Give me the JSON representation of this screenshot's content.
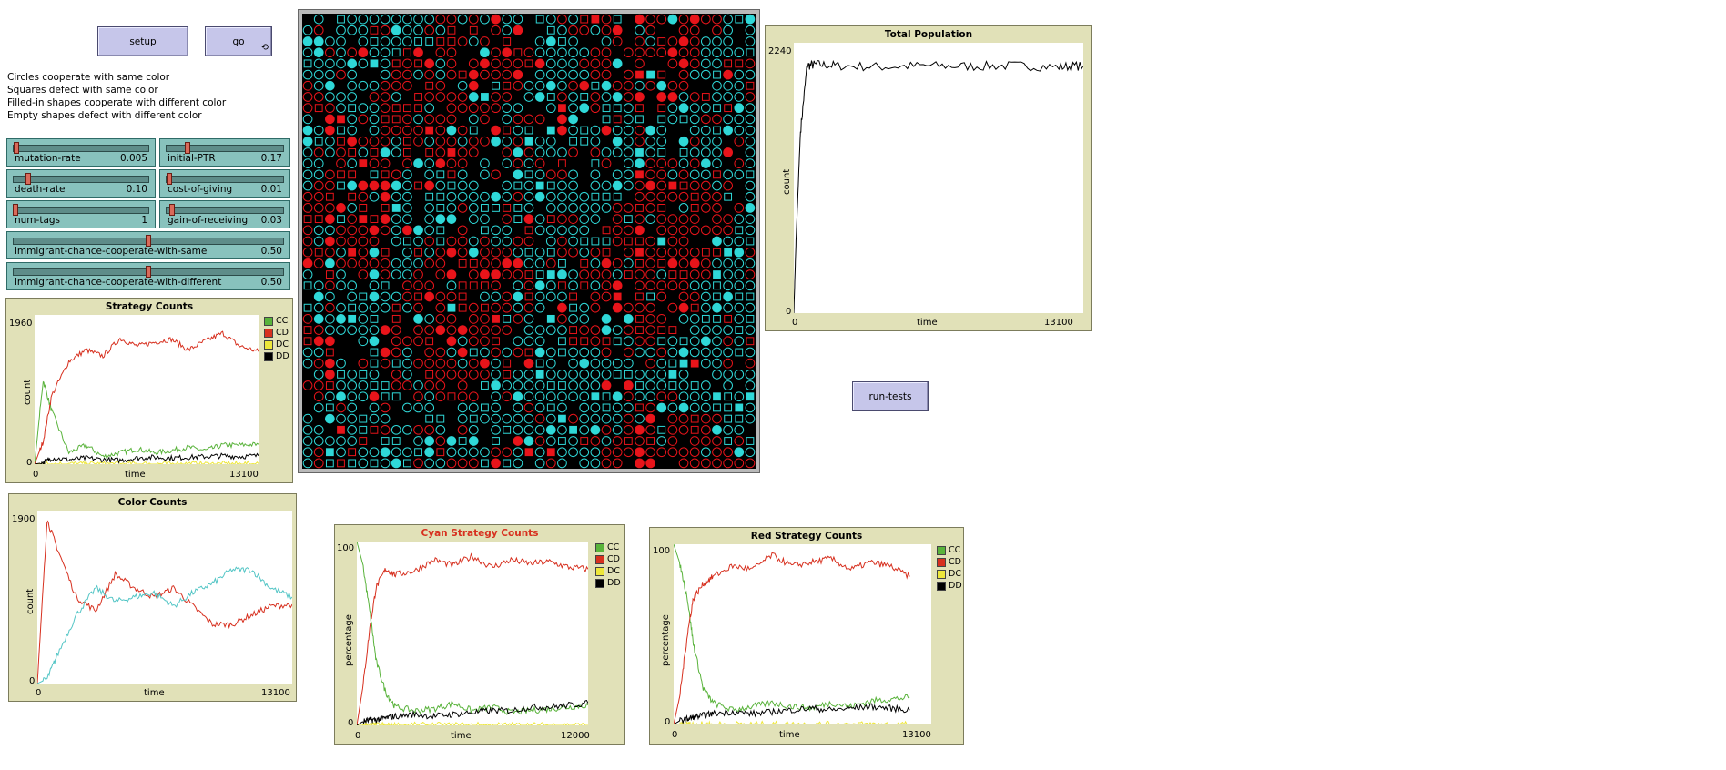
{
  "buttons": {
    "setup": "setup",
    "go": "go",
    "go_forever_icon": "⟲",
    "run_tests": "run-tests"
  },
  "notes": [
    "Circles cooperate with same color",
    "Squares defect with same color",
    "Filled-in shapes cooperate with different color",
    "Empty shapes defect with different color"
  ],
  "sliders": [
    {
      "label": "mutation-rate",
      "value": "0.005",
      "fraction": 0.01
    },
    {
      "label": "initial-PTR",
      "value": "0.17",
      "fraction": 0.17
    },
    {
      "label": "death-rate",
      "value": "0.10",
      "fraction": 0.1
    },
    {
      "label": "cost-of-giving",
      "value": "0.01",
      "fraction": 0.01
    },
    {
      "label": "num-tags",
      "value": "1",
      "fraction": 0.0
    },
    {
      "label": "gain-of-receiving",
      "value": "0.03",
      "fraction": 0.03
    },
    {
      "label": "immigrant-chance-cooperate-with-same",
      "value": "0.50",
      "fraction": 0.5
    },
    {
      "label": "immigrant-chance-cooperate-with-different",
      "value": "0.50",
      "fraction": 0.5
    }
  ],
  "colors": {
    "cc": "#59b33b",
    "cd": "#d7301f",
    "dc": "#ede73a",
    "dd": "#000000",
    "cyan": "#52c5c5",
    "red": "#d7301f",
    "agent_cyan": "#2fd8d8",
    "agent_red": "#e8141a",
    "plot_bg": "#e1e1b8",
    "button": "#c6c6ea",
    "slider": "#88c2bd"
  },
  "plots": {
    "strategy": {
      "title": "Strategy Counts",
      "ymax_label": "1960",
      "ymin_label": "0",
      "xmin_label": "0",
      "xmax_label": "13100",
      "xlabel": "time",
      "ylabel": "count",
      "legend": [
        "CC",
        "CD",
        "DC",
        "DD"
      ]
    },
    "color": {
      "title": "Color Counts",
      "ymax_label": "1900",
      "ymin_label": "0",
      "xmin_label": "0",
      "xmax_label": "13100",
      "xlabel": "time",
      "ylabel": "count"
    },
    "total": {
      "title": "Total Population",
      "ymax_label": "2240",
      "ymin_label": "0",
      "xmin_label": "0",
      "xmax_label": "13100",
      "xlabel": "time",
      "ylabel": "count"
    },
    "cyan": {
      "title": "Cyan Strategy Counts",
      "title_color": "#d7301f",
      "ymax_label": "100",
      "ymin_label": "0",
      "xmin_label": "0",
      "xmax_label": "12000",
      "xlabel": "time",
      "ylabel": "percentage",
      "legend": [
        "CC",
        "CD",
        "DC",
        "DD"
      ]
    },
    "red": {
      "title": "Red Strategy Counts",
      "ymax_label": "100",
      "ymin_label": "0",
      "xmin_label": "0",
      "xmax_label": "13100",
      "xlabel": "time",
      "ylabel": "percentage",
      "legend": [
        "CC",
        "CD",
        "DC",
        "DD"
      ]
    }
  },
  "chart_data": [
    {
      "type": "line",
      "title": "Strategy Counts",
      "xlabel": "time",
      "ylabel": "count",
      "xlim": [
        0,
        13100
      ],
      "ylim": [
        0,
        1960
      ],
      "x": [
        0,
        500,
        1000,
        2000,
        3000,
        4000,
        5000,
        6000,
        7000,
        8000,
        9000,
        10000,
        11000,
        12000,
        13100
      ],
      "series": [
        {
          "name": "CC",
          "values": [
            0,
            1100,
            700,
            150,
            250,
            100,
            150,
            200,
            150,
            180,
            220,
            180,
            250,
            250,
            260
          ]
        },
        {
          "name": "CD",
          "values": [
            0,
            300,
            900,
            1350,
            1500,
            1420,
            1650,
            1550,
            1600,
            1640,
            1500,
            1620,
            1720,
            1550,
            1480
          ]
        },
        {
          "name": "DC",
          "values": [
            0,
            5,
            5,
            5,
            5,
            5,
            5,
            5,
            5,
            5,
            5,
            5,
            5,
            5,
            5
          ]
        },
        {
          "name": "DD",
          "values": [
            0,
            20,
            80,
            60,
            80,
            60,
            50,
            80,
            90,
            80,
            90,
            100,
            110,
            100,
            110
          ]
        }
      ]
    },
    {
      "type": "line",
      "title": "Color Counts",
      "xlabel": "time",
      "ylabel": "count",
      "xlim": [
        0,
        13100
      ],
      "ylim": [
        0,
        1900
      ],
      "x": [
        0,
        500,
        1000,
        2000,
        3000,
        4000,
        5000,
        6000,
        7000,
        8000,
        9000,
        10000,
        11000,
        12000,
        13100
      ],
      "series": [
        {
          "values": [
            0,
            1800,
            1500,
            950,
            800,
            1200,
            1050,
            950,
            1050,
            850,
            650,
            650,
            750,
            850,
            870
          ]
        },
        {
          "values": [
            0,
            50,
            300,
            750,
            1050,
            900,
            950,
            1000,
            850,
            1000,
            1100,
            1250,
            1250,
            1050,
            950
          ]
        }
      ]
    },
    {
      "type": "line",
      "title": "Total Population",
      "xlabel": "time",
      "ylabel": "count",
      "xlim": [
        0,
        13100
      ],
      "ylim": [
        0,
        2240
      ],
      "x": [
        0,
        100,
        300,
        600,
        1000,
        2000,
        4000,
        6000,
        8000,
        10000,
        12000,
        13100
      ],
      "series": [
        {
          "values": [
            0,
            600,
            1500,
            2050,
            2060,
            2050,
            2040,
            2050,
            2045,
            2050,
            2040,
            2050
          ]
        }
      ]
    },
    {
      "type": "line",
      "title": "Cyan Strategy Counts",
      "xlabel": "time",
      "ylabel": "percentage",
      "xlim": [
        0,
        12000
      ],
      "ylim": [
        0,
        100
      ],
      "x": [
        0,
        300,
        700,
        1000,
        1500,
        2000,
        3000,
        4000,
        5000,
        6000,
        7000,
        8000,
        9000,
        10000,
        11000,
        12000
      ],
      "series": [
        {
          "name": "CC",
          "values": [
            100,
            88,
            60,
            35,
            18,
            10,
            8,
            9,
            12,
            8,
            10,
            7,
            8,
            9,
            10,
            11
          ]
        },
        {
          "name": "CD",
          "values": [
            0,
            20,
            55,
            75,
            85,
            82,
            84,
            90,
            87,
            92,
            86,
            90,
            88,
            89,
            86,
            85
          ]
        },
        {
          "name": "DC",
          "values": [
            0,
            0,
            0,
            0,
            0,
            0,
            0,
            0,
            0,
            0,
            0,
            0,
            0,
            0,
            0,
            0
          ]
        },
        {
          "name": "DD",
          "values": [
            0,
            2,
            3,
            3,
            4,
            5,
            6,
            5,
            6,
            7,
            8,
            8,
            10,
            10,
            11,
            12
          ]
        }
      ]
    },
    {
      "type": "line",
      "title": "Red Strategy Counts",
      "xlabel": "time",
      "ylabel": "percentage",
      "xlim": [
        0,
        13100
      ],
      "ylim": [
        0,
        100
      ],
      "x": [
        0,
        300,
        700,
        1000,
        1500,
        2000,
        3000,
        4000,
        5000,
        6000,
        7000,
        8000,
        9000,
        10000,
        11000,
        12000
      ],
      "series": [
        {
          "name": "CC",
          "values": [
            100,
            90,
            70,
            45,
            20,
            12,
            8,
            10,
            12,
            10,
            9,
            12,
            10,
            13,
            14,
            15
          ]
        },
        {
          "name": "CD",
          "values": [
            0,
            15,
            50,
            70,
            78,
            82,
            88,
            86,
            94,
            88,
            90,
            92,
            86,
            90,
            88,
            82
          ]
        },
        {
          "name": "DC",
          "values": [
            0,
            0,
            0,
            0,
            0,
            0,
            0,
            0,
            0,
            0,
            0,
            0,
            0,
            0,
            0,
            0
          ]
        },
        {
          "name": "DD",
          "values": [
            0,
            2,
            3,
            4,
            5,
            6,
            7,
            6,
            7,
            8,
            9,
            8,
            9,
            10,
            9,
            8
          ]
        }
      ]
    }
  ]
}
